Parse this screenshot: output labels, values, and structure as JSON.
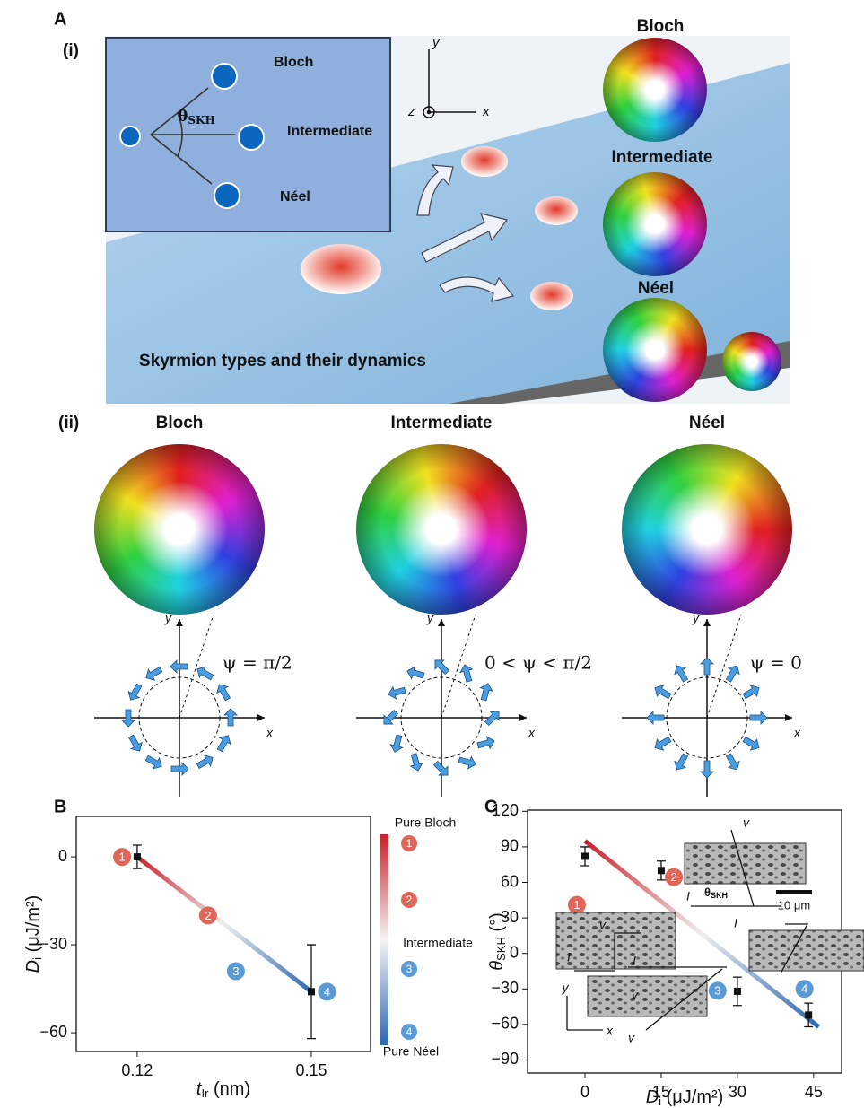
{
  "panel_a": {
    "label": "A",
    "sub_i": "(i)",
    "inset_labels": [
      "Bloch",
      "Intermediate",
      "Néel"
    ],
    "theta": "θ",
    "theta_sub": "SKH",
    "axes": {
      "y": "y",
      "z": "z",
      "x": "x"
    },
    "sphere_labels": [
      "Bloch",
      "Intermediate",
      "Néel"
    ],
    "caption": "Skyrmion types and their dynamics"
  },
  "panel_a_ii": {
    "label": "(ii)",
    "types": [
      "Bloch",
      "Intermediate",
      "Néel"
    ],
    "psi": [
      "ψ = π/2",
      "0 < ψ < π/2",
      "ψ = 0"
    ],
    "axis_x": "x",
    "axis_y": "y"
  },
  "chart_data": [
    {
      "type": "errorbar",
      "panel_label": "B",
      "x_label": {
        "main": "t",
        "sub": "Ir",
        "rest": " (nm)"
      },
      "y_label": {
        "main": "D",
        "sub": "i",
        "rest": " (μJ/m²)"
      },
      "x": [
        0.12,
        0.15
      ],
      "values": [
        0,
        -46
      ],
      "errors": [
        4,
        16
      ],
      "color": "#111111",
      "fit_line": {
        "x": [
          0.12,
          0.15
        ],
        "y": [
          0,
          -46
        ],
        "colors": [
          "#c8202b",
          "#eeeeee",
          "#2b66b1"
        ]
      },
      "markers": {
        "labels": [
          "1",
          "2",
          "3",
          "4"
        ],
        "x": [
          0.1174,
          0.1322,
          0.137,
          0.1527
        ],
        "y": [
          0,
          -20,
          -39,
          -46
        ],
        "colors": [
          "#e0665a",
          "#e0665a",
          "#5b9bd5",
          "#5b9bd5"
        ]
      },
      "colorbar": {
        "labels": [
          "Pure Bloch",
          "Intermediate",
          "Pure Néel"
        ],
        "markers": [
          "1",
          "2",
          "3",
          "4"
        ],
        "colors": [
          "#c8202b",
          "#f4f4f4",
          "#2b66b1"
        ]
      },
      "xlim": [
        0.1095,
        0.1602
      ],
      "ylim": [
        -66.4,
        13.8
      ],
      "xticks": [
        0.12,
        0.15
      ],
      "yticks": [
        0,
        {
          "value": -30,
          "label": "−30"
        },
        {
          "value": -60,
          "label": "−60"
        }
      ]
    },
    {
      "type": "errorbar",
      "panel_label": "C",
      "x_label": {
        "main": "D",
        "sub": "i",
        "rest": " (μJ/m²)"
      },
      "y_label": {
        "main": "θ",
        "sub": "SKH",
        "rest": " (°)"
      },
      "x": [
        0,
        15,
        30,
        44
      ],
      "values": [
        82,
        70,
        -32,
        -52
      ],
      "errors": [
        8,
        8,
        12,
        10
      ],
      "color": "#111111",
      "fit_line": {
        "x": [
          0,
          46
        ],
        "y": [
          95,
          -62
        ],
        "colors": [
          "#c8202b",
          "#eeeeee",
          "#2b66b1"
        ]
      },
      "markers": {
        "labels": [
          "1",
          "2",
          "3",
          "4"
        ],
        "x": [
          -1.6,
          17.5,
          26.1,
          43.2
        ],
        "y": [
          41,
          64.5,
          -31.5,
          -30
        ],
        "colors": [
          "#e0665a",
          "#e0665a",
          "#5b9bd5",
          "#5b9bd5"
        ]
      },
      "inset_labels": {
        "v": "v",
        "i": "I",
        "theta": "θ",
        "theta_sub": "SKH",
        "scale": "10 μm",
        "x": "x",
        "y": "y"
      },
      "xlim": [
        -11.3,
        50.5
      ],
      "ylim": [
        -101,
        121
      ],
      "xticks": [
        0,
        15,
        30,
        45
      ],
      "yticks": [
        120,
        90,
        60,
        30,
        0,
        {
          "value": -30,
          "label": "−30"
        },
        {
          "value": -60,
          "label": "−60"
        },
        {
          "value": -90,
          "label": "−90"
        }
      ]
    }
  ]
}
